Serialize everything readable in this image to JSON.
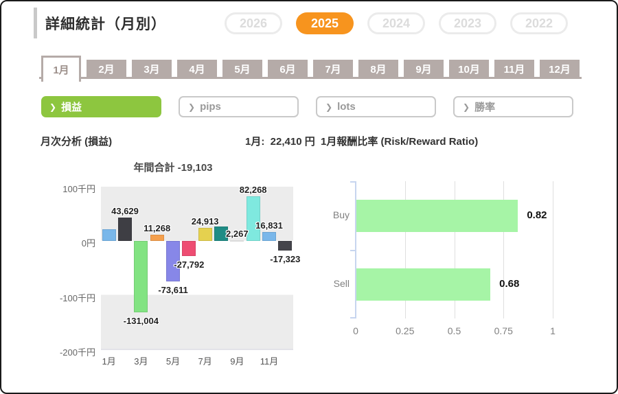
{
  "window": {
    "title": "詳細統計（月別）"
  },
  "year_tabs": {
    "items": [
      {
        "label": "2026",
        "active": false
      },
      {
        "label": "2025",
        "active": true
      },
      {
        "label": "2024",
        "active": false
      },
      {
        "label": "2023",
        "active": false
      },
      {
        "label": "2022",
        "active": false
      }
    ]
  },
  "month_tabs": {
    "items": [
      {
        "label": "1月",
        "active": true
      },
      {
        "label": "2月",
        "active": false
      },
      {
        "label": "3月",
        "active": false
      },
      {
        "label": "4月",
        "active": false
      },
      {
        "label": "5月",
        "active": false
      },
      {
        "label": "6月",
        "active": false
      },
      {
        "label": "7月",
        "active": false
      },
      {
        "label": "8月",
        "active": false
      },
      {
        "label": "9月",
        "active": false
      },
      {
        "label": "10月",
        "active": false
      },
      {
        "label": "11月",
        "active": false
      },
      {
        "label": "12月",
        "active": false
      }
    ]
  },
  "filters": {
    "arrow": "❯",
    "items": [
      {
        "label": "損益",
        "active": true
      },
      {
        "label": "pips",
        "active": false
      },
      {
        "label": "lots",
        "active": false
      },
      {
        "label": "勝率",
        "active": false
      }
    ]
  },
  "sections": {
    "left_title": "月次分析 (損益)",
    "left_value": "1月:  22,410 円",
    "right_title": "1月報酬比率 (Risk/Reward Ratio)"
  },
  "colors": {
    "accent_orange": "#f7941e",
    "accent_green": "#8dc63f",
    "tab_taupe": "#b5aba8",
    "band_gray": "#ececec",
    "rr_bar_green": "#a6f4a6"
  },
  "chart_data": [
    {
      "name": "monthly-pnl",
      "type": "bar",
      "title": "年間合計 -19,103",
      "annual_total": -19103,
      "categories": [
        "1月",
        "2月",
        "3月",
        "4月",
        "5月",
        "6月",
        "7月",
        "8月",
        "9月",
        "10月",
        "11月",
        "12月"
      ],
      "values": [
        22410,
        43629,
        -131004,
        11268,
        -73611,
        -27792,
        24913,
        27041,
        2267,
        82268,
        16831,
        -17323
      ],
      "bar_labels": [
        "",
        "43,629",
        "-131,004",
        "11,268",
        "-73,611",
        "-27,792",
        "24,913",
        "",
        "2,267",
        "82,268",
        "16,831",
        "-17,323"
      ],
      "bar_colors": [
        "#79b7ea",
        "#3e3e44",
        "#82e382",
        "#f5a04d",
        "#8787e8",
        "#ee4d72",
        "#e5d14f",
        "#1f8c85",
        "#f4f4f4",
        "#7fe9df",
        "#79b7ea",
        "#44444a"
      ],
      "ylim": [
        -200000,
        100000
      ],
      "yticks": [
        {
          "label": "100千円",
          "value": 100000
        },
        {
          "label": "0円",
          "value": 0
        },
        {
          "label": "-100千円",
          "value": -100000
        },
        {
          "label": "-200千円",
          "value": -200000
        }
      ],
      "xticks": [
        "1月",
        "3月",
        "5月",
        "7月",
        "9月",
        "11月"
      ],
      "grid": false,
      "legend": "none"
    },
    {
      "name": "risk-reward",
      "type": "bar-horizontal",
      "categories": [
        "Buy",
        "Sell"
      ],
      "values": [
        0.82,
        0.68
      ],
      "value_labels": [
        "0.82",
        "0.68"
      ],
      "xlim": [
        0,
        1
      ],
      "xticks": [
        {
          "label": "0",
          "value": 0
        },
        {
          "label": "0.25",
          "value": 0.25
        },
        {
          "label": "0.5",
          "value": 0.5
        },
        {
          "label": "0.75",
          "value": 0.75
        },
        {
          "label": "1",
          "value": 1
        }
      ],
      "grid": true,
      "legend": "none"
    }
  ]
}
